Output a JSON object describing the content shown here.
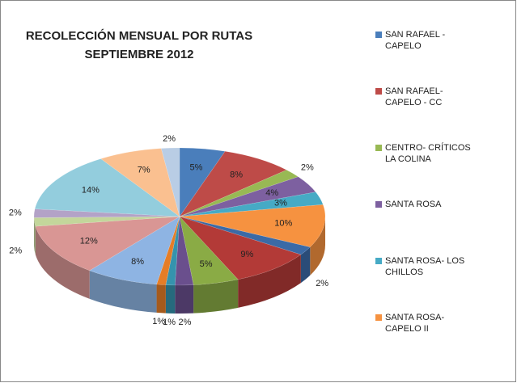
{
  "chart_data": {
    "type": "pie3d",
    "title": "RECOLECCIÓN MENSUAL POR RUTAS",
    "subtitle": "SEPTIEMBRE 2012",
    "categories": [
      "SAN RAFAEL - CAPELO",
      "SAN RAFAEL- CAPELO - CC",
      "CENTRO- CRÍTICOS LA COLINA",
      "SANTA ROSA",
      "SANTA ROSA- LOS CHILLOS",
      "SANTA ROSA- CAPELO II",
      null,
      null,
      null,
      null,
      null,
      null,
      null,
      null,
      null,
      null,
      null,
      null,
      null
    ],
    "values": [
      5,
      8,
      2,
      4,
      3,
      10,
      2,
      9,
      5,
      2,
      1,
      1,
      8,
      12,
      2,
      2,
      14,
      7,
      2
    ],
    "value_labels": [
      "5%",
      "8%",
      "2%",
      "4%",
      "3%",
      "10%",
      "2%",
      "9%",
      "5%",
      "2%",
      "1%",
      "1%",
      "8%",
      "12%",
      "2%",
      "2%",
      "14%",
      "7%",
      "2%"
    ],
    "colors": [
      "#4a7ebb",
      "#be4b48",
      "#98b954",
      "#7d60a0",
      "#46aac5",
      "#f69240",
      "#3b6aa6",
      "#b33a37",
      "#8aab45",
      "#6a4f8d",
      "#3593ad",
      "#e57d27",
      "#8eb4e3",
      "#d99694",
      "#c3d69b",
      "#b3a2c7",
      "#93cddd",
      "#fac090",
      "#b9cde5"
    ],
    "legend": "right"
  }
}
